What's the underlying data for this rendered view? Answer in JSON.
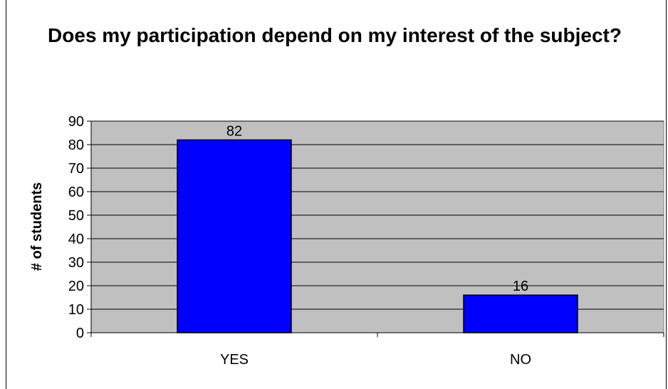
{
  "chart_data": {
    "type": "bar",
    "title": "Does my participation depend on my interest of the subject?",
    "xlabel": "",
    "ylabel": "# of students",
    "categories": [
      "YES",
      "NO"
    ],
    "values": [
      82,
      16
    ],
    "data_labels": [
      "82",
      "16"
    ],
    "ylim": [
      0,
      90
    ],
    "yticks": [
      0,
      10,
      20,
      30,
      40,
      50,
      60,
      70,
      80,
      90
    ],
    "grid": true,
    "legend": "none",
    "colors": {
      "bar": "#0000FF",
      "plot_background": "#C0C0C0",
      "gridline": "#000000"
    }
  }
}
